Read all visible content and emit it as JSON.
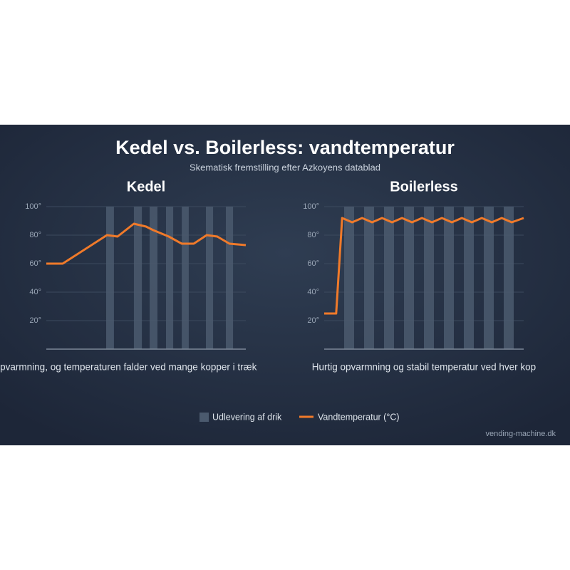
{
  "title": "Kedel vs. Boilerless: vandtemperatur",
  "subtitle": "Skematisk fremstilling efter Azkoyens datablad",
  "legend": [
    {
      "name": "Udlevering af drik",
      "color": "#4b5a6e"
    },
    {
      "name": "Vandtemperatur (°C)",
      "color": "#f07a2a"
    }
  ],
  "footer": "vending-machine.dk",
  "chart_data": [
    {
      "type": "line",
      "title": "Kedel",
      "caption": "Opvarmning, og temperaturen falder ved mange kopper i træk",
      "xlim": [
        0,
        100
      ],
      "ylim": [
        0,
        100
      ],
      "grid": true,
      "yticks": [
        {
          "value": 20,
          "label": "20°"
        },
        {
          "value": 40,
          "label": "40°"
        },
        {
          "value": 60,
          "label": "60°"
        },
        {
          "value": 80,
          "label": "80°"
        },
        {
          "value": 100,
          "label": "100°"
        }
      ],
      "bands": [
        [
          30,
          33.9
        ],
        [
          43.9,
          47.9
        ],
        [
          51.8,
          55.7
        ],
        [
          60,
          63.6
        ],
        [
          67.9,
          71.4
        ],
        [
          80,
          83.6
        ],
        [
          90,
          93.6
        ]
      ],
      "x": [
        0,
        8.2,
        30.4,
        35.7,
        43.9,
        50,
        53.6,
        61.4,
        67.9,
        73.9,
        80.4,
        85.7,
        91.8,
        100
      ],
      "values": [
        60,
        60,
        80,
        79,
        88,
        86,
        83.5,
        79,
        74,
        74,
        80,
        79,
        74,
        73
      ]
    },
    {
      "type": "line",
      "title": "Boilerless",
      "caption": "Hurtig opvarmning og stabil temperatur ved hver kop",
      "xlim": [
        0,
        100
      ],
      "ylim": [
        0,
        100
      ],
      "grid": true,
      "yticks": [
        {
          "value": 20,
          "label": "20°"
        },
        {
          "value": 40,
          "label": "40°"
        },
        {
          "value": 60,
          "label": "60°"
        },
        {
          "value": 80,
          "label": "80°"
        },
        {
          "value": 100,
          "label": "100°"
        }
      ],
      "bands": [
        [
          10,
          15
        ],
        [
          20,
          25
        ],
        [
          30,
          35
        ],
        [
          40,
          45
        ],
        [
          50,
          55
        ],
        [
          60,
          65
        ],
        [
          70,
          75
        ],
        [
          80,
          85
        ],
        [
          90,
          95
        ]
      ],
      "x": [
        0,
        6,
        9,
        14,
        19,
        24,
        29,
        34,
        39,
        44,
        49,
        54,
        59,
        64,
        69,
        74,
        79,
        84,
        89,
        94,
        100
      ],
      "values": [
        25,
        25,
        92,
        89,
        92,
        89,
        92,
        89,
        92,
        89,
        92,
        89,
        92,
        89,
        92,
        89,
        92,
        89,
        92,
        89,
        92
      ]
    }
  ]
}
